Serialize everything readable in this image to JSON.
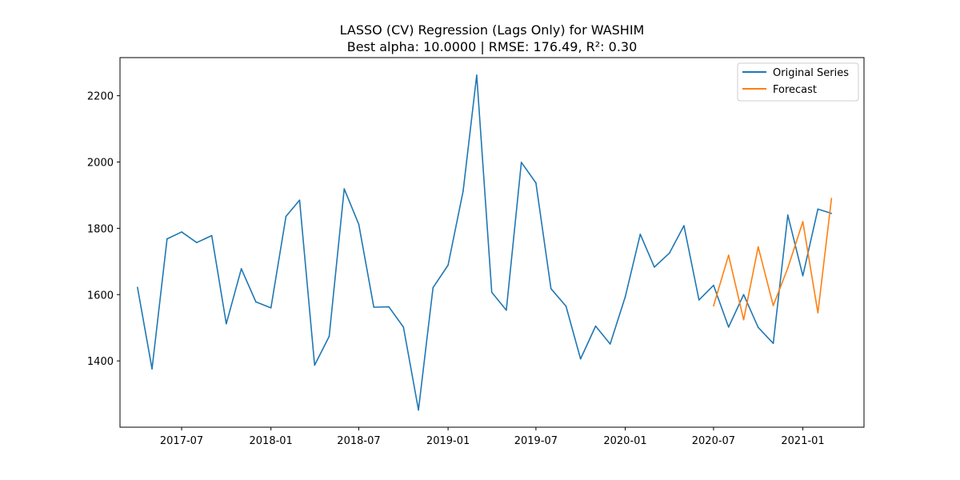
{
  "chart_data": {
    "type": "line",
    "title": "LASSO (CV) Regression (Lags Only) for WASHIM",
    "subtitle": "Best alpha: 10.0000 | RMSE: 176.49, R²: 0.30",
    "xlabel": "",
    "ylabel": "",
    "x_ticks": [
      "2017-07",
      "2018-01",
      "2018-07",
      "2019-01",
      "2019-07",
      "2020-01",
      "2020-07",
      "2021-01"
    ],
    "y_ticks": [
      1400,
      1600,
      1800,
      2000,
      2200
    ],
    "xlim": [
      "2017-02-24",
      "2021-05-07"
    ],
    "ylim": [
      1200,
      2315
    ],
    "grid": false,
    "legend_position": "top-right",
    "series": [
      {
        "name": "Original Series",
        "color": "#1f77b4",
        "x": [
          "2017-04",
          "2017-05",
          "2017-06",
          "2017-07",
          "2017-08",
          "2017-09",
          "2017-10",
          "2017-11",
          "2017-12",
          "2018-01",
          "2018-02",
          "2018-03",
          "2018-04",
          "2018-05",
          "2018-06",
          "2018-07",
          "2018-08",
          "2018-09",
          "2018-10",
          "2018-11",
          "2018-12",
          "2019-01",
          "2019-02",
          "2019-03",
          "2019-04",
          "2019-05",
          "2019-06",
          "2019-07",
          "2019-08",
          "2019-09",
          "2019-10",
          "2019-11",
          "2019-12",
          "2020-01",
          "2020-02",
          "2020-03",
          "2020-04",
          "2020-05",
          "2020-06",
          "2020-07",
          "2020-08",
          "2020-09",
          "2020-10",
          "2020-11",
          "2020-12",
          "2021-01",
          "2021-02",
          "2021-03"
        ],
        "values": [
          1622,
          1376,
          1768,
          1789,
          1757,
          1778,
          1512,
          1678,
          1578,
          1560,
          1836,
          1885,
          1387,
          1474,
          1919,
          1812,
          1562,
          1563,
          1502,
          1252,
          1621,
          1689,
          1912,
          2262,
          1607,
          1553,
          1999,
          1937,
          1618,
          1565,
          1406,
          1505,
          1451,
          1593,
          1782,
          1683,
          1725,
          1808,
          1584,
          1628,
          1502,
          1600,
          1501,
          1453,
          1840,
          1657,
          1858,
          1845
        ]
      },
      {
        "name": "Forecast",
        "color": "#ff7f0e",
        "x": [
          "2020-07",
          "2020-08",
          "2020-09",
          "2020-10",
          "2020-11",
          "2020-12",
          "2021-01",
          "2021-02",
          "2021-03"
        ],
        "values": [
          1566,
          1719,
          1524,
          1744,
          1567,
          1680,
          1820,
          1545,
          1890
        ]
      }
    ]
  }
}
